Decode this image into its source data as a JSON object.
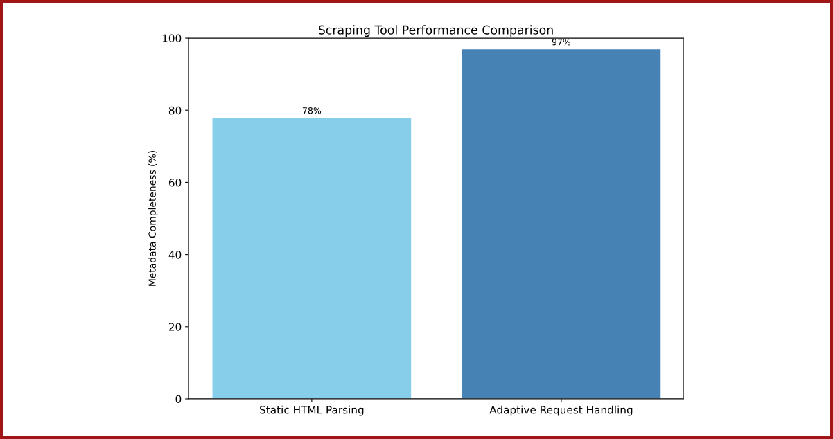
{
  "chart_data": {
    "type": "bar",
    "title": "Scraping Tool Performance Comparison",
    "ylabel": "Metadata Completeness (%)",
    "categories": [
      "Static HTML Parsing",
      "Adaptive Request Handling"
    ],
    "values": [
      78,
      97
    ],
    "colors": [
      "#87ceeb",
      "#4682b4"
    ],
    "value_labels": [
      "78%",
      "97%"
    ],
    "ylim": [
      0,
      100
    ],
    "yticks": [
      0,
      20,
      40,
      60,
      80,
      100
    ],
    "grid": false
  }
}
